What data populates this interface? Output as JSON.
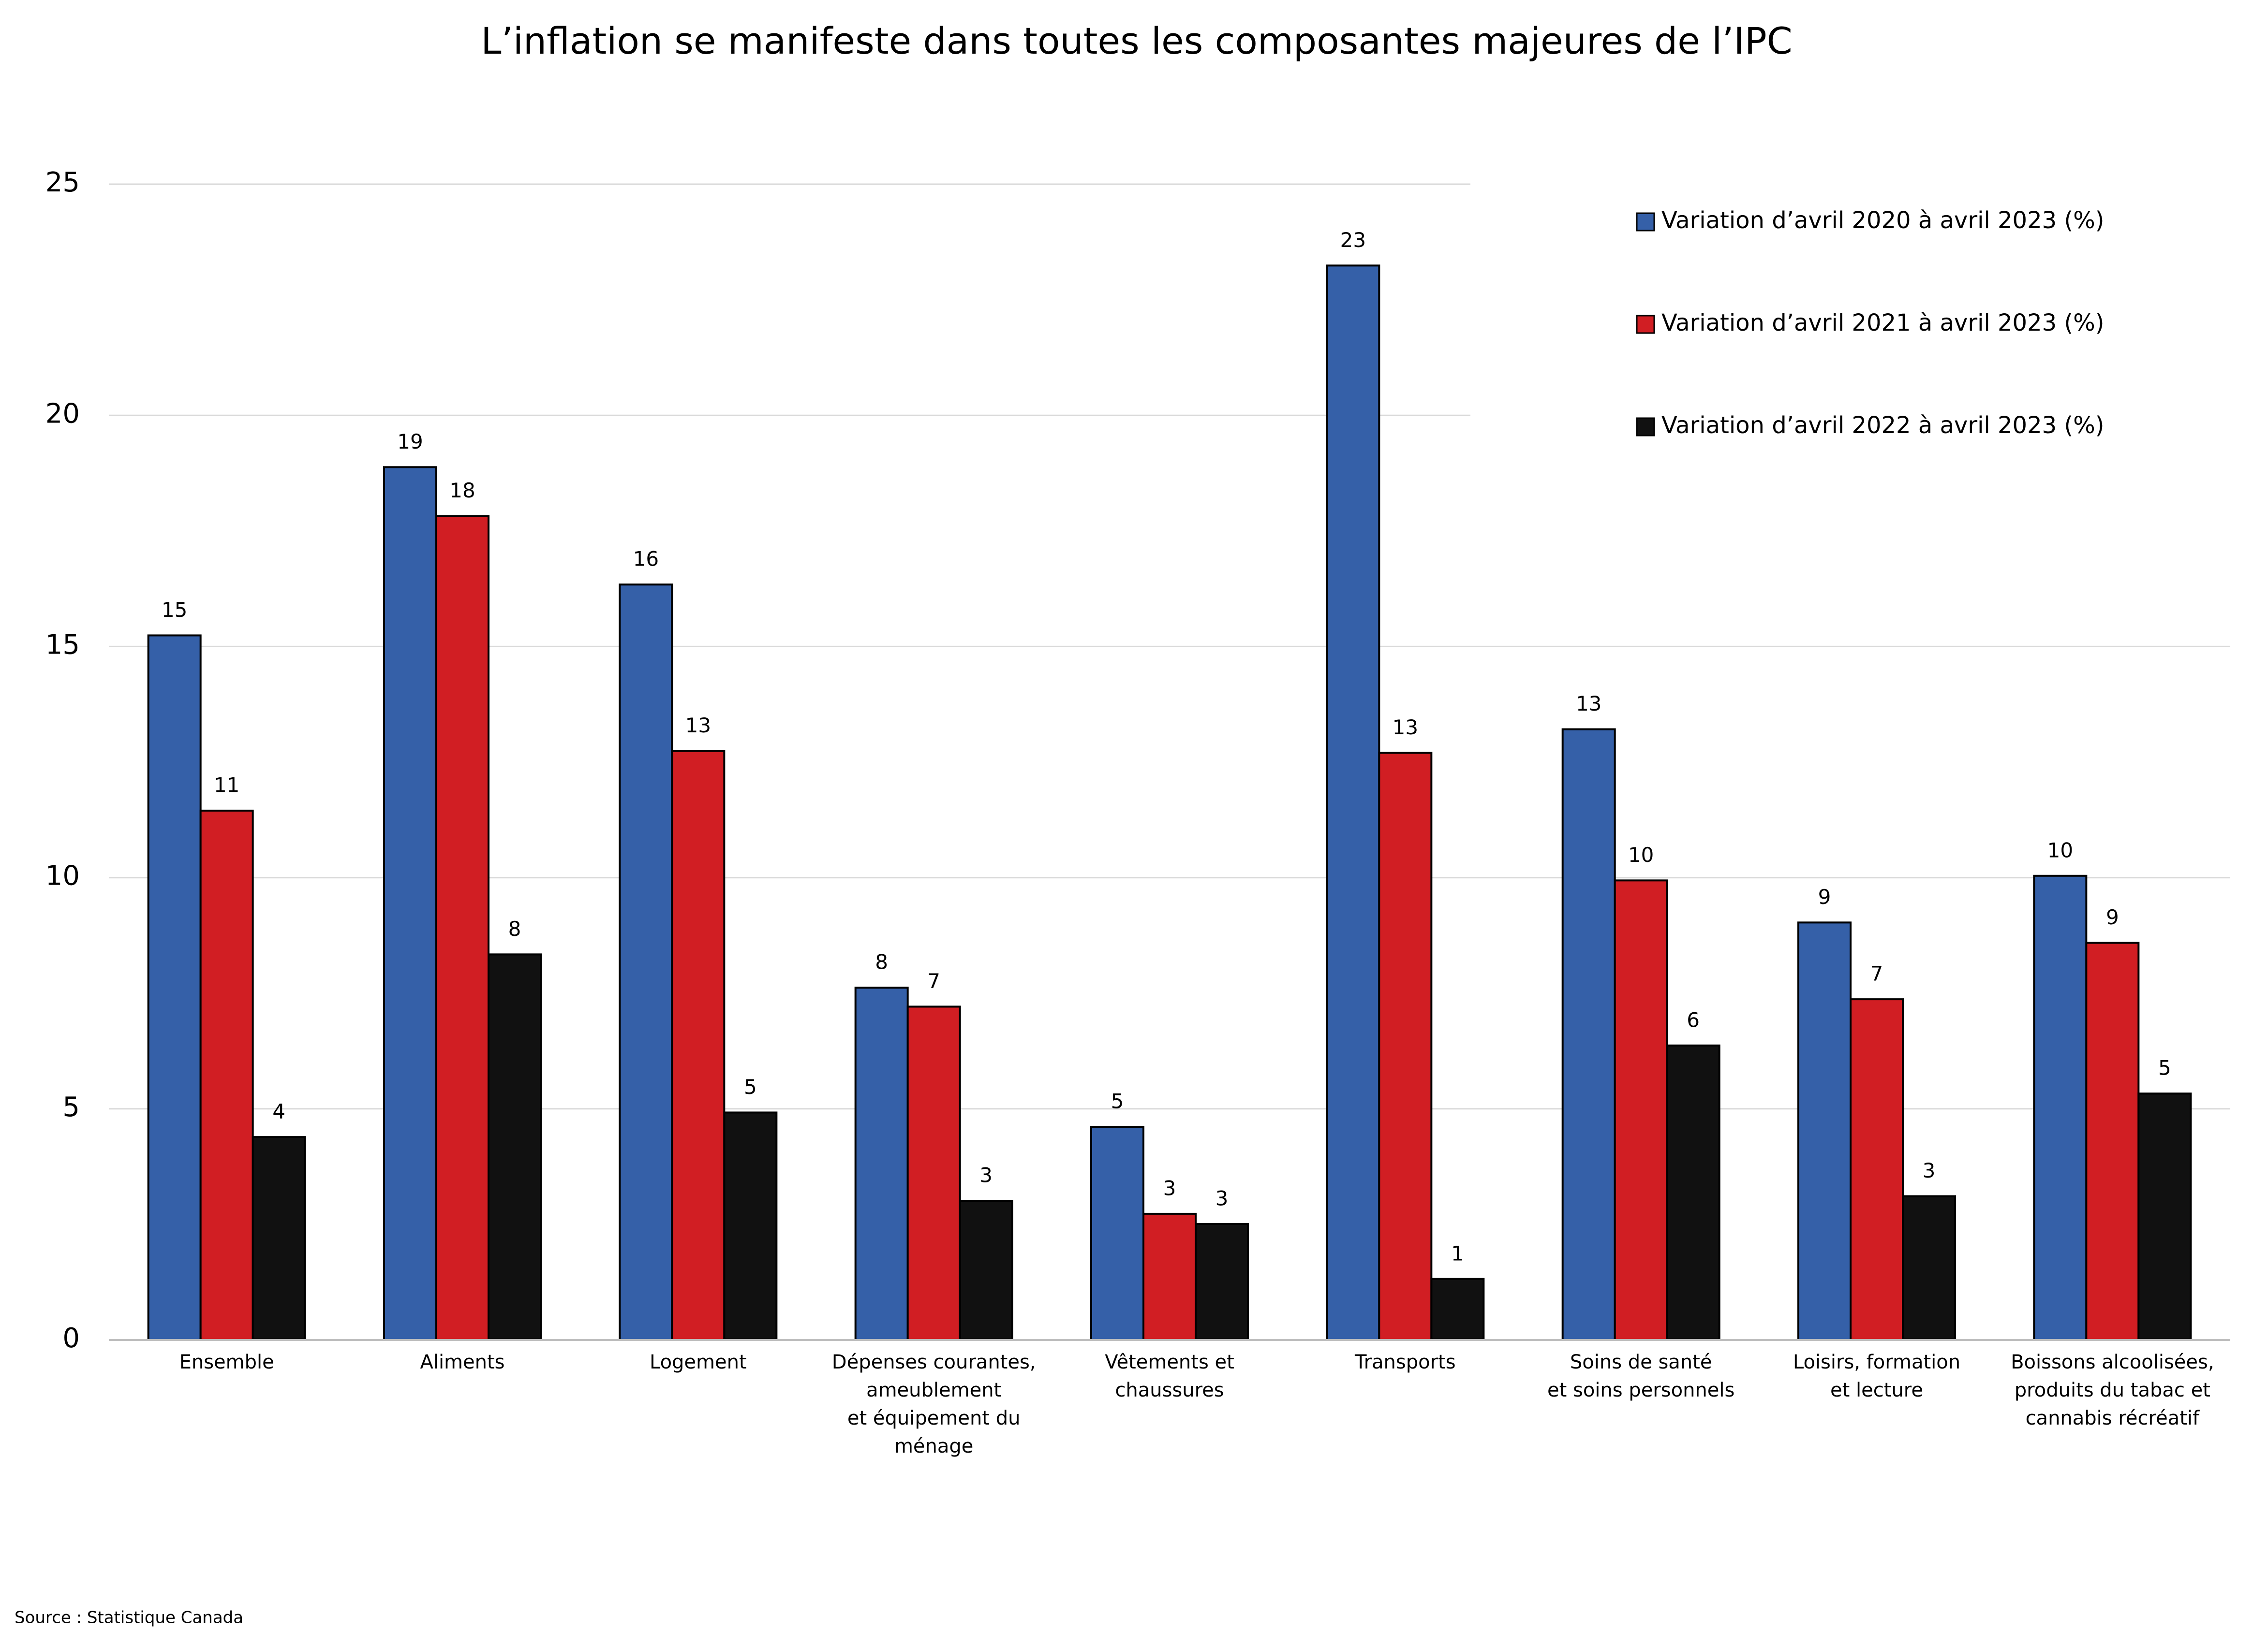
{
  "chart_data": {
    "type": "bar",
    "title": "L’inflation se manifeste dans toutes les composantes majeures de l’IPC",
    "categories": [
      "Ensemble",
      "Aliments",
      "Logement",
      "Dépenses courantes,\nameublement\net équipement du\nménage",
      "Vêtements et\nchaussures",
      "Transports",
      "Soins de santé\net soins personnels",
      "Loisirs, formation\net lecture",
      "Boissons alcoolisées,\nproduits du tabac et\ncannabis récréatif"
    ],
    "series": [
      {
        "name": "Variation d’avril 2020 à avril 2023 (%)",
        "color": "#3560a8",
        "values": [
          15.24,
          18.88,
          16.34,
          7.62,
          4.61,
          23.24,
          13.21,
          9.03,
          10.04
        ],
        "value_labels": [
          "15",
          "19",
          "16",
          "8",
          "5",
          "23",
          "13",
          "9",
          "10"
        ]
      },
      {
        "name": "Variation d’avril 2021 à avril 2023 (%)",
        "color": "#d11e23",
        "values": [
          11.45,
          17.82,
          12.74,
          7.21,
          2.73,
          12.7,
          9.94,
          7.37,
          8.59
        ],
        "value_labels": [
          "11",
          "18",
          "13",
          "7",
          "3",
          "13",
          "10",
          "7",
          "9"
        ]
      },
      {
        "name": "Variation d’avril 2022 à avril 2023 (%)",
        "color": "#111111",
        "values": [
          4.39,
          8.34,
          4.92,
          3.01,
          2.51,
          1.32,
          6.37,
          3.11,
          5.33
        ],
        "value_labels": [
          "4",
          "8",
          "5",
          "3",
          "3",
          "1",
          "6",
          "3",
          "5"
        ]
      }
    ],
    "ylim": [
      0,
      25
    ],
    "yticks": [
      0,
      5,
      10,
      15,
      20,
      25
    ],
    "grid": true,
    "legend": "top-right",
    "source": "Source : Statistique Canada"
  }
}
